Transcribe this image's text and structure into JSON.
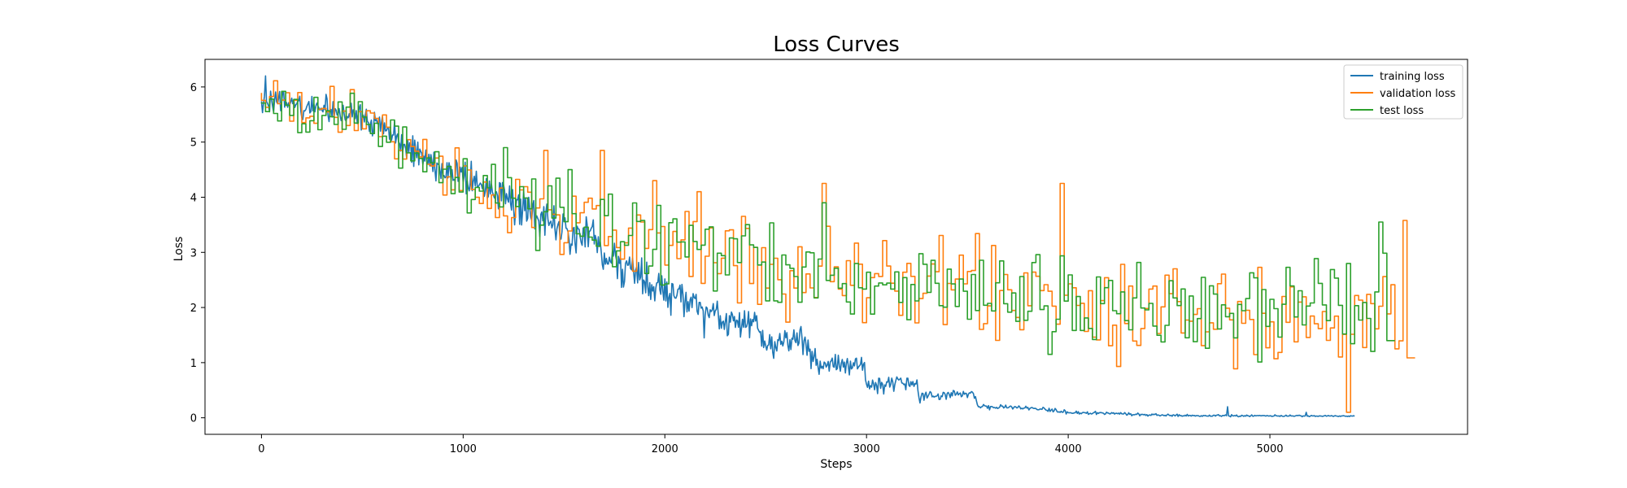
{
  "chart_data": {
    "type": "line",
    "title": "Loss Curves",
    "xlabel": "Steps",
    "ylabel": "Loss",
    "xlim": [
      -280,
      5980
    ],
    "ylim": [
      -0.3,
      6.5
    ],
    "xticks": [
      0,
      1000,
      2000,
      3000,
      4000,
      5000
    ],
    "yticks": [
      0,
      1,
      2,
      3,
      4,
      5,
      6
    ],
    "grid": false,
    "legend_position": "top-right",
    "series": [
      {
        "name": "training loss",
        "color": "#1f77b4",
        "style": "noisy-line",
        "step": 5,
        "x_end": 5420,
        "anchors": [
          [
            0,
            5.8
          ],
          [
            100,
            5.72
          ],
          [
            300,
            5.6
          ],
          [
            500,
            5.5
          ],
          [
            700,
            5.0
          ],
          [
            900,
            4.5
          ],
          [
            1100,
            4.2
          ],
          [
            1300,
            3.8
          ],
          [
            1500,
            3.35
          ],
          [
            1650,
            3.3
          ],
          [
            1700,
            2.8
          ],
          [
            1800,
            2.75
          ],
          [
            1900,
            2.5
          ],
          [
            2000,
            2.3
          ],
          [
            2150,
            2.05
          ],
          [
            2200,
            1.85
          ],
          [
            2450,
            1.75
          ],
          [
            2500,
            1.35
          ],
          [
            2700,
            1.35
          ],
          [
            2750,
            0.95
          ],
          [
            2990,
            0.98
          ],
          [
            3000,
            0.6
          ],
          [
            3250,
            0.62
          ],
          [
            3260,
            0.38
          ],
          [
            3530,
            0.45
          ],
          [
            3550,
            0.2
          ],
          [
            3800,
            0.18
          ],
          [
            4000,
            0.1
          ],
          [
            4500,
            0.04
          ],
          [
            5420,
            0.03
          ]
        ],
        "noise": [
          [
            0,
            0.12
          ],
          [
            500,
            0.12
          ],
          [
            1000,
            0.15
          ],
          [
            1500,
            0.18
          ],
          [
            2000,
            0.18
          ],
          [
            2500,
            0.14
          ],
          [
            3000,
            0.08
          ],
          [
            3550,
            0.03
          ],
          [
            4000,
            0.015
          ],
          [
            5420,
            0.005
          ]
        ],
        "spikes": [
          [
            18,
            6.2
          ],
          [
            4790,
            0.2
          ],
          [
            5180,
            0.1
          ]
        ]
      },
      {
        "name": "validation loss",
        "color": "#ff7f0e",
        "style": "step",
        "step": 20,
        "x_end": 5700,
        "anchors": [
          [
            0,
            5.8
          ],
          [
            500,
            5.45
          ],
          [
            1000,
            4.35
          ],
          [
            1500,
            3.6
          ],
          [
            2000,
            3.25
          ],
          [
            2500,
            2.75
          ],
          [
            3000,
            2.55
          ],
          [
            3500,
            2.3
          ],
          [
            4000,
            2.1
          ],
          [
            4500,
            1.95
          ],
          [
            5000,
            1.85
          ],
          [
            5700,
            1.9
          ]
        ],
        "noise": [
          [
            0,
            0.15
          ],
          [
            1000,
            0.3
          ],
          [
            2000,
            0.35
          ],
          [
            3000,
            0.4
          ],
          [
            4000,
            0.45
          ],
          [
            5700,
            0.45
          ]
        ],
        "spikes": [
          [
            1410,
            4.85
          ],
          [
            1690,
            4.85
          ],
          [
            1950,
            4.3
          ],
          [
            2170,
            4.1
          ],
          [
            2790,
            4.25
          ],
          [
            3970,
            4.25
          ],
          [
            4250,
            0.93
          ],
          [
            5400,
            0.1
          ],
          [
            5640,
            1.25
          ],
          [
            5680,
            3.58
          ]
        ]
      },
      {
        "name": "test loss",
        "color": "#2ca02c",
        "style": "step",
        "step": 20,
        "x_end": 5600,
        "anchors": [
          [
            0,
            5.75
          ],
          [
            500,
            5.4
          ],
          [
            1000,
            4.4
          ],
          [
            1500,
            3.6
          ],
          [
            2000,
            3.2
          ],
          [
            2500,
            2.75
          ],
          [
            3000,
            2.5
          ],
          [
            3500,
            2.35
          ],
          [
            4000,
            2.1
          ],
          [
            4500,
            2.0
          ],
          [
            5000,
            1.95
          ],
          [
            5600,
            2.1
          ]
        ],
        "noise": [
          [
            0,
            0.15
          ],
          [
            1000,
            0.3
          ],
          [
            2000,
            0.35
          ],
          [
            3000,
            0.4
          ],
          [
            4000,
            0.42
          ],
          [
            5600,
            0.42
          ]
        ],
        "spikes": [
          [
            1210,
            4.9
          ],
          [
            1540,
            4.5
          ],
          [
            2800,
            3.9
          ],
          [
            3910,
            1.15
          ],
          [
            5560,
            3.55
          ]
        ]
      }
    ]
  }
}
